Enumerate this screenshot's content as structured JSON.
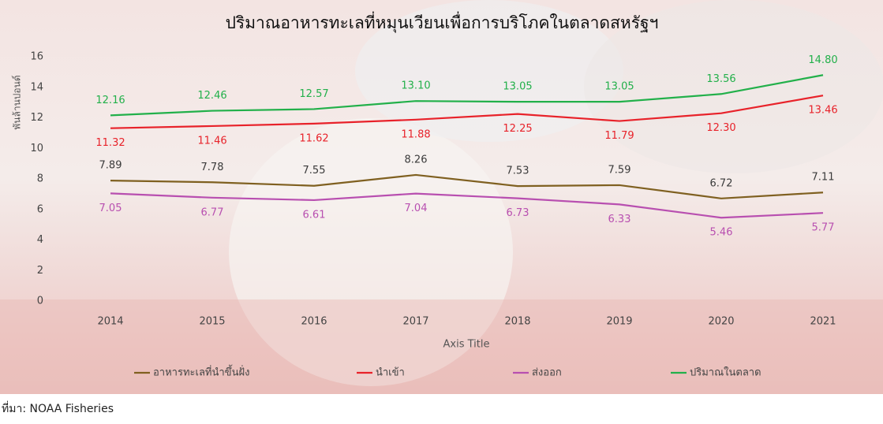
{
  "chart_data": {
    "type": "line",
    "title": "ปริมาณอาหารทะเลที่หมุนเวียนเพื่อการบริโภคในตลาดสหรัฐฯ",
    "y_axis_label": "พันล้านปอนด์",
    "x_axis_label": "Axis Title",
    "source": "ที่มา: NOAA Fisheries",
    "categories": [
      "2014",
      "2015",
      "2016",
      "2017",
      "2018",
      "2019",
      "2020",
      "2021"
    ],
    "series": [
      {
        "name": "อาหารทะเลที่นำขึ้นฝั่ง",
        "color": "#7f6020",
        "label_color": "#3a3a3a",
        "label_position": "above",
        "values": [
          7.89,
          7.78,
          7.55,
          8.26,
          7.53,
          7.59,
          6.72,
          7.11
        ],
        "value_labels": [
          "7.89",
          "7.78",
          "7.55",
          "8.26",
          "7.53",
          "7.59",
          "6.72",
          "7.11"
        ]
      },
      {
        "name": "นำเข้า",
        "color": "#e8222a",
        "label_color": "#e8222a",
        "label_position": "below",
        "values": [
          11.32,
          11.46,
          11.62,
          11.88,
          12.25,
          11.79,
          12.3,
          13.46
        ],
        "value_labels": [
          "11.32",
          "11.46",
          "11.62",
          "11.88",
          "12.25",
          "11.79",
          "12.30",
          "13.46"
        ]
      },
      {
        "name": "ส่งออก",
        "color": "#b84fb0",
        "label_color": "#b84fb0",
        "label_position": "below",
        "values": [
          7.05,
          6.77,
          6.61,
          7.04,
          6.73,
          6.33,
          5.46,
          5.77
        ],
        "value_labels": [
          "7.05",
          "6.77",
          "6.61",
          "7.04",
          "6.73",
          "6.33",
          "5.46",
          "5.77"
        ]
      },
      {
        "name": "ปริมาณในตลาด",
        "color": "#22b04a",
        "label_color": "#22b04a",
        "label_position": "above",
        "values": [
          12.16,
          12.46,
          12.57,
          13.1,
          13.05,
          13.05,
          13.56,
          14.8
        ],
        "value_labels": [
          "12.16",
          "12.46",
          "12.57",
          "13.10",
          "13.05",
          "13.05",
          "13.56",
          "14.80"
        ]
      }
    ],
    "ylim": [
      0,
      16
    ],
    "yticks": [
      0,
      2,
      4,
      6,
      8,
      10,
      12,
      14,
      16
    ],
    "grid": false,
    "legend": "bottom"
  }
}
